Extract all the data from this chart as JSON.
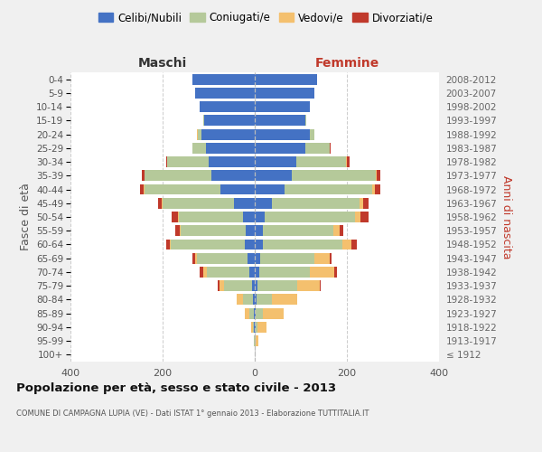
{
  "age_groups": [
    "100+",
    "95-99",
    "90-94",
    "85-89",
    "80-84",
    "75-79",
    "70-74",
    "65-69",
    "60-64",
    "55-59",
    "50-54",
    "45-49",
    "40-44",
    "35-39",
    "30-34",
    "25-29",
    "20-24",
    "15-19",
    "10-14",
    "5-9",
    "0-4"
  ],
  "birth_years": [
    "≤ 1912",
    "1913-1917",
    "1918-1922",
    "1923-1927",
    "1928-1932",
    "1933-1937",
    "1938-1942",
    "1943-1947",
    "1948-1952",
    "1953-1957",
    "1958-1962",
    "1963-1967",
    "1968-1972",
    "1973-1977",
    "1978-1982",
    "1983-1987",
    "1988-1992",
    "1993-1997",
    "1998-2002",
    "2003-2007",
    "2008-2012"
  ],
  "colors": {
    "celibi": "#4472C4",
    "coniugati": "#b5c99a",
    "vedovi": "#f4c06e",
    "divorziati": "#c0392b"
  },
  "males": {
    "celibi": [
      0,
      0,
      1,
      2,
      3,
      5,
      12,
      15,
      22,
      20,
      25,
      45,
      75,
      95,
      100,
      105,
      115,
      110,
      120,
      130,
      135
    ],
    "coniugati": [
      0,
      1,
      3,
      10,
      22,
      62,
      92,
      110,
      160,
      140,
      140,
      155,
      165,
      145,
      90,
      30,
      8,
      2,
      0,
      0,
      0
    ],
    "vedovi": [
      0,
      1,
      4,
      10,
      15,
      10,
      8,
      5,
      3,
      3,
      2,
      1,
      1,
      0,
      0,
      0,
      2,
      0,
      0,
      0,
      0
    ],
    "divorziati": [
      0,
      0,
      0,
      0,
      0,
      3,
      8,
      5,
      7,
      9,
      14,
      8,
      8,
      5,
      3,
      1,
      0,
      0,
      0,
      0,
      0
    ]
  },
  "females": {
    "celibi": [
      0,
      0,
      1,
      2,
      3,
      5,
      10,
      12,
      18,
      18,
      22,
      38,
      65,
      80,
      90,
      110,
      120,
      110,
      120,
      130,
      135
    ],
    "coniugati": [
      0,
      2,
      5,
      15,
      35,
      88,
      110,
      118,
      172,
      152,
      195,
      190,
      190,
      182,
      108,
      52,
      10,
      2,
      0,
      0,
      0
    ],
    "vedovi": [
      0,
      5,
      20,
      45,
      55,
      48,
      52,
      32,
      20,
      15,
      12,
      8,
      5,
      3,
      2,
      1,
      0,
      0,
      0,
      0,
      0
    ],
    "divorziati": [
      0,
      0,
      0,
      0,
      0,
      2,
      6,
      5,
      12,
      8,
      18,
      12,
      12,
      8,
      5,
      2,
      0,
      0,
      0,
      0,
      0
    ]
  },
  "xlim": 400,
  "title": "Popolazione per età, sesso e stato civile - 2013",
  "subtitle": "COMUNE DI CAMPAGNA LUPIA (VE) - Dati ISTAT 1° gennaio 2013 - Elaborazione TUTTITALIA.IT",
  "ylabel_left": "Fasce di età",
  "ylabel_right": "Anni di nascita",
  "xlabel_left": "Maschi",
  "xlabel_right": "Femmine",
  "legend_labels": [
    "Celibi/Nubili",
    "Coniugati/e",
    "Vedovi/e",
    "Divorziati/e"
  ],
  "bg_color": "#f0f0f0",
  "plot_bg": "#ffffff"
}
